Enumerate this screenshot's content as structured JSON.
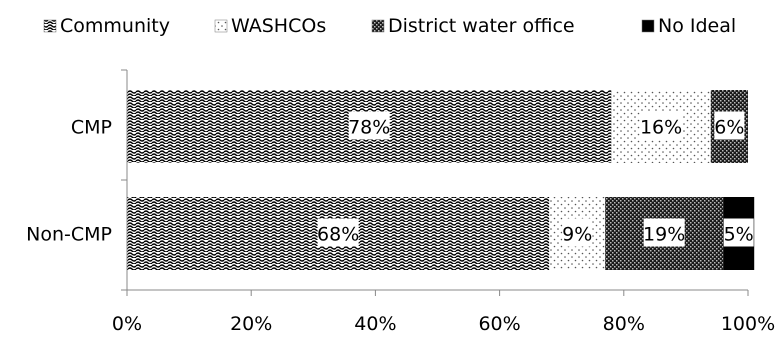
{
  "chart_data": {
    "type": "bar",
    "orientation": "horizontal",
    "stacked": "percent",
    "categories": [
      "CMP",
      "Non-CMP"
    ],
    "series": [
      {
        "name": "Community",
        "pattern": "dense-wave",
        "values": [
          78,
          68
        ],
        "labels": [
          "78%",
          "68%"
        ]
      },
      {
        "name": "WASHCOs",
        "pattern": "sparse-dots",
        "values": [
          16,
          9
        ],
        "labels": [
          "16%",
          "9%"
        ]
      },
      {
        "name": "District water office",
        "pattern": "dark-checker",
        "values": [
          6,
          19
        ],
        "labels": [
          "6%",
          "19%"
        ]
      },
      {
        "name": "No Ideal",
        "pattern": "solid-black",
        "values": [
          0,
          5
        ],
        "labels": [
          "",
          "5%"
        ]
      }
    ],
    "xlim": [
      0,
      100
    ],
    "x_ticks": [
      "0%",
      "20%",
      "40%",
      "60%",
      "80%",
      "100%"
    ],
    "legend_position": "top",
    "grid": false
  }
}
